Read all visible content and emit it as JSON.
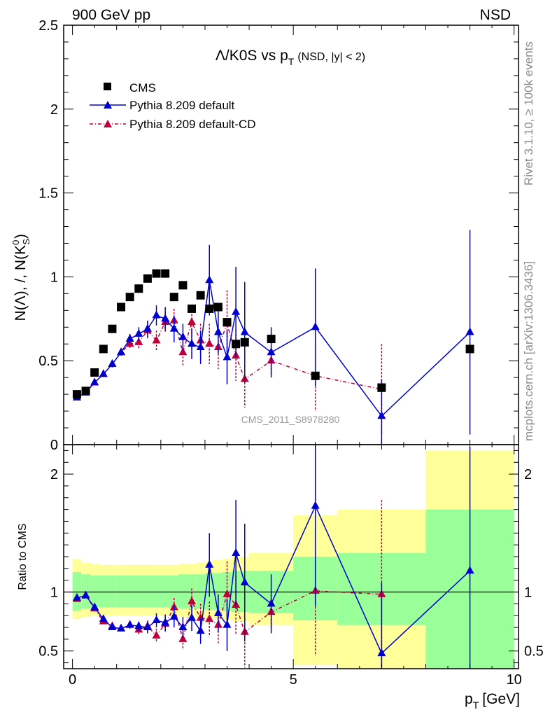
{
  "header": {
    "left": "900 GeV pp",
    "right": "NSD"
  },
  "side_text": {
    "upper": "Rivet 3.1.10, ≥ 100k events",
    "lower": "mcplots.cern.ch [arXiv:1306.3436]"
  },
  "chart_data": [
    {
      "type": "scatter",
      "panel": "main",
      "title": "Λ/K0S vs p",
      "title_sub": "T",
      "title_suffix": "(NSD, |y| < 2)",
      "ylabel": "N(Λ), /, N(K",
      "ylabel_sup": "0",
      "ylabel_sub": "S",
      "ylabel_end": ")",
      "watermark": "CMS_2011_S8978280",
      "ylim": [
        0,
        2.5
      ],
      "xlim": [
        -0.2,
        10.1
      ],
      "yticks": [
        "0",
        "0.5",
        "1",
        "1.5",
        "2",
        "2.5"
      ],
      "ytick_values": [
        0,
        0.5,
        1,
        1.5,
        2,
        2.5
      ],
      "legend": [
        "CMS",
        "Pythia 8.209 default",
        "Pythia 8.209 default-CD"
      ],
      "series": [
        {
          "name": "CMS",
          "color": "#000000",
          "x": [
            0.1,
            0.3,
            0.5,
            0.7,
            0.9,
            1.1,
            1.3,
            1.5,
            1.7,
            1.9,
            2.1,
            2.3,
            2.5,
            2.7,
            2.9,
            3.1,
            3.3,
            3.5,
            3.7,
            3.9,
            4.5,
            5.5,
            7.0,
            9.0
          ],
          "y": [
            0.3,
            0.32,
            0.43,
            0.57,
            0.69,
            0.82,
            0.88,
            0.93,
            0.99,
            1.02,
            1.02,
            0.88,
            0.95,
            0.81,
            0.89,
            0.81,
            0.82,
            0.73,
            0.6,
            0.61,
            0.63,
            0.41,
            0.34,
            0.57
          ]
        },
        {
          "name": "Pythia 8.209 default",
          "color": "#0000d0",
          "x": [
            0.1,
            0.3,
            0.5,
            0.7,
            0.9,
            1.1,
            1.3,
            1.5,
            1.7,
            1.9,
            2.1,
            2.3,
            2.5,
            2.7,
            2.9,
            3.1,
            3.3,
            3.5,
            3.7,
            3.9,
            4.5,
            5.5,
            7.0,
            9.0
          ],
          "y": [
            0.28,
            0.31,
            0.37,
            0.42,
            0.48,
            0.55,
            0.63,
            0.66,
            0.69,
            0.77,
            0.75,
            0.69,
            0.64,
            0.6,
            0.58,
            0.98,
            0.67,
            0.52,
            0.79,
            0.67,
            0.55,
            0.7,
            0.17,
            0.67
          ],
          "err": [
            0.01,
            0.01,
            0.01,
            0.01,
            0.02,
            0.02,
            0.03,
            0.04,
            0.05,
            0.06,
            0.07,
            0.08,
            0.08,
            0.09,
            0.1,
            0.21,
            0.13,
            0.16,
            0.27,
            0.3,
            0.15,
            0.35,
            0.22,
            0.61
          ]
        },
        {
          "name": "Pythia 8.209 default-CD",
          "color": "#c0003a",
          "x": [
            0.1,
            0.3,
            0.5,
            0.7,
            0.9,
            1.1,
            1.3,
            1.5,
            1.7,
            1.9,
            2.1,
            2.3,
            2.5,
            2.7,
            2.9,
            3.1,
            3.3,
            3.5,
            3.7,
            3.9,
            4.5,
            5.5,
            7.0
          ],
          "y": [
            0.28,
            0.31,
            0.37,
            0.42,
            0.48,
            0.55,
            0.6,
            0.61,
            0.68,
            0.62,
            0.73,
            0.74,
            0.55,
            0.73,
            0.62,
            0.6,
            0.58,
            0.72,
            0.53,
            0.39,
            0.5,
            0.41,
            0.33
          ],
          "err": [
            0.01,
            0.01,
            0.01,
            0.01,
            0.02,
            0.02,
            0.03,
            0.04,
            0.05,
            0.06,
            0.06,
            0.07,
            0.08,
            0.09,
            0.1,
            0.12,
            0.13,
            0.2,
            0.15,
            0.17,
            0.08,
            0.21,
            0.27
          ]
        }
      ]
    },
    {
      "type": "scatter",
      "panel": "ratio",
      "ylabel": "Ratio to CMS",
      "xlabel": "p",
      "xlabel_sub": "T",
      "xlabel_unit": "[GeV]",
      "ylim": [
        0.35,
        2.25
      ],
      "xlim": [
        -0.2,
        10.1
      ],
      "xticks": [
        "0",
        "5",
        "10"
      ],
      "xtick_values": [
        0,
        5,
        10
      ],
      "yticks": [
        "0.5",
        "1",
        "2"
      ],
      "ytick_values": [
        0.5,
        1,
        2
      ],
      "bands": [
        {
          "x0": 0.0,
          "x1": 0.2,
          "g_lo": 0.84,
          "g_hi": 1.17,
          "y_lo": 0.77,
          "y_hi": 1.28
        },
        {
          "x0": 0.2,
          "x1": 0.4,
          "g_lo": 0.86,
          "g_hi": 1.15,
          "y_lo": 0.79,
          "y_hi": 1.25
        },
        {
          "x0": 0.4,
          "x1": 0.6,
          "g_lo": 0.87,
          "g_hi": 1.14,
          "y_lo": 0.8,
          "y_hi": 1.24
        },
        {
          "x0": 0.6,
          "x1": 0.8,
          "g_lo": 0.87,
          "g_hi": 1.14,
          "y_lo": 0.8,
          "y_hi": 1.23
        },
        {
          "x0": 0.8,
          "x1": 1.0,
          "g_lo": 0.87,
          "g_hi": 1.14,
          "y_lo": 0.8,
          "y_hi": 1.23
        },
        {
          "x0": 1.0,
          "x1": 1.2,
          "g_lo": 0.87,
          "g_hi": 1.14,
          "y_lo": 0.8,
          "y_hi": 1.23
        },
        {
          "x0": 1.2,
          "x1": 1.4,
          "g_lo": 0.87,
          "g_hi": 1.14,
          "y_lo": 0.8,
          "y_hi": 1.23
        },
        {
          "x0": 1.4,
          "x1": 1.6,
          "g_lo": 0.87,
          "g_hi": 1.14,
          "y_lo": 0.8,
          "y_hi": 1.23
        },
        {
          "x0": 1.6,
          "x1": 1.8,
          "g_lo": 0.87,
          "g_hi": 1.14,
          "y_lo": 0.8,
          "y_hi": 1.23
        },
        {
          "x0": 1.8,
          "x1": 2.0,
          "g_lo": 0.87,
          "g_hi": 1.14,
          "y_lo": 0.8,
          "y_hi": 1.23
        },
        {
          "x0": 2.0,
          "x1": 2.2,
          "g_lo": 0.87,
          "g_hi": 1.14,
          "y_lo": 0.8,
          "y_hi": 1.23
        },
        {
          "x0": 2.2,
          "x1": 2.4,
          "g_lo": 0.87,
          "g_hi": 1.14,
          "y_lo": 0.8,
          "y_hi": 1.23
        },
        {
          "x0": 2.4,
          "x1": 2.6,
          "g_lo": 0.86,
          "g_hi": 1.15,
          "y_lo": 0.79,
          "y_hi": 1.24
        },
        {
          "x0": 2.6,
          "x1": 2.8,
          "g_lo": 0.86,
          "g_hi": 1.15,
          "y_lo": 0.79,
          "y_hi": 1.24
        },
        {
          "x0": 2.8,
          "x1": 3.0,
          "g_lo": 0.86,
          "g_hi": 1.15,
          "y_lo": 0.78,
          "y_hi": 1.25
        },
        {
          "x0": 3.0,
          "x1": 3.2,
          "g_lo": 0.85,
          "g_hi": 1.16,
          "y_lo": 0.78,
          "y_hi": 1.26
        },
        {
          "x0": 3.2,
          "x1": 3.4,
          "g_lo": 0.85,
          "g_hi": 1.16,
          "y_lo": 0.77,
          "y_hi": 1.27
        },
        {
          "x0": 3.4,
          "x1": 3.6,
          "g_lo": 0.84,
          "g_hi": 1.17,
          "y_lo": 0.76,
          "y_hi": 1.28
        },
        {
          "x0": 3.6,
          "x1": 4.0,
          "g_lo": 0.83,
          "g_hi": 1.18,
          "y_lo": 0.75,
          "y_hi": 1.3
        },
        {
          "x0": 4.0,
          "x1": 5.0,
          "g_lo": 0.82,
          "g_hi": 1.18,
          "y_lo": 0.72,
          "y_hi": 1.33
        },
        {
          "x0": 5.0,
          "x1": 6.0,
          "g_lo": 0.76,
          "g_hi": 1.3,
          "y_lo": 0.38,
          "y_hi": 1.65
        },
        {
          "x0": 6.0,
          "x1": 8.0,
          "g_lo": 0.72,
          "g_hi": 1.33,
          "y_lo": 0.35,
          "y_hi": 1.7
        },
        {
          "x0": 8.0,
          "x1": 10.0,
          "g_lo": 0.35,
          "g_hi": 1.7,
          "y_lo": 0.35,
          "y_hi": 2.2
        }
      ],
      "series": [
        {
          "name": "Pythia 8.209 default",
          "color": "#0000d0",
          "x": [
            0.1,
            0.3,
            0.5,
            0.7,
            0.9,
            1.1,
            1.3,
            1.5,
            1.7,
            1.9,
            2.1,
            2.3,
            2.5,
            2.7,
            2.9,
            3.1,
            3.3,
            3.5,
            3.7,
            3.9,
            4.5,
            5.5,
            7.0,
            9.0
          ],
          "y": [
            0.95,
            0.97,
            0.87,
            0.77,
            0.7,
            0.69,
            0.72,
            0.71,
            0.7,
            0.76,
            0.74,
            0.79,
            0.7,
            0.78,
            0.67,
            1.23,
            0.82,
            0.72,
            1.33,
            1.08,
            0.9,
            1.73,
            0.48,
            1.18
          ],
          "err": [
            0.02,
            0.02,
            0.02,
            0.02,
            0.02,
            0.02,
            0.03,
            0.04,
            0.05,
            0.06,
            0.07,
            0.09,
            0.09,
            0.11,
            0.11,
            0.27,
            0.16,
            0.22,
            0.45,
            0.5,
            0.25,
            0.85,
            0.6,
            1.05
          ]
        },
        {
          "name": "Pythia 8.209 default-CD",
          "color": "#c0003a",
          "x": [
            0.1,
            0.3,
            0.5,
            0.7,
            0.9,
            1.1,
            1.3,
            1.5,
            1.7,
            1.9,
            2.1,
            2.3,
            2.5,
            2.7,
            2.9,
            3.1,
            3.3,
            3.5,
            3.7,
            3.9,
            4.5,
            5.5,
            7.0
          ],
          "y": [
            0.94,
            0.97,
            0.86,
            0.75,
            0.71,
            0.69,
            0.72,
            0.68,
            0.71,
            0.63,
            0.73,
            0.87,
            0.6,
            0.92,
            0.78,
            0.77,
            0.72,
            0.98,
            0.89,
            0.66,
            0.83,
            1.01,
            0.98
          ],
          "err": [
            0.02,
            0.02,
            0.02,
            0.02,
            0.02,
            0.02,
            0.03,
            0.04,
            0.05,
            0.06,
            0.07,
            0.08,
            0.09,
            0.11,
            0.12,
            0.15,
            0.16,
            0.28,
            0.25,
            0.3,
            0.15,
            0.55,
            0.8
          ]
        }
      ]
    }
  ]
}
